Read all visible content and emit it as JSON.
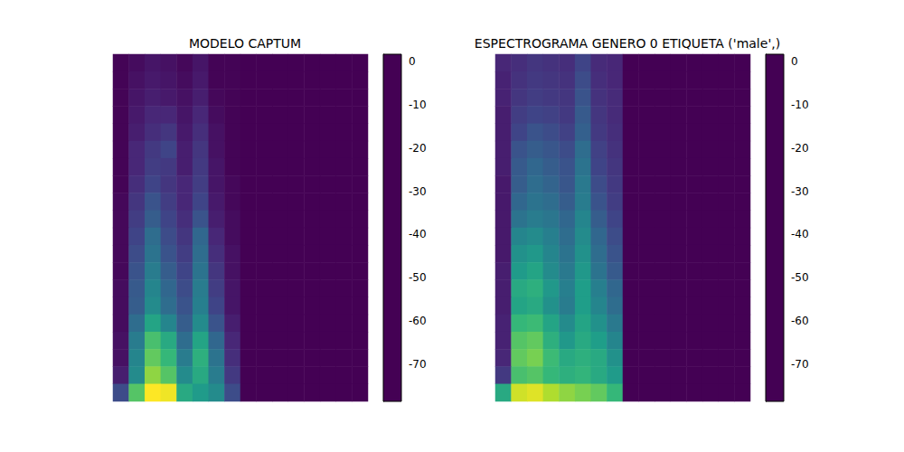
{
  "chart_data": [
    {
      "type": "heatmap",
      "title": "MODELO CAPTUM",
      "tick_labels": false,
      "colorbar": {
        "range": [
          -78.6,
          1.7
        ],
        "ticks": [
          -70,
          -60,
          -50,
          -40,
          -30,
          -20,
          -10,
          0
        ]
      },
      "cells": [
        [
          -78,
          -76,
          -74,
          -75,
          -77,
          -74,
          -78,
          -78,
          -78.6,
          -78.6,
          -78.6,
          -78.6,
          -78.6,
          -78.6,
          -78.6,
          -78.6
        ],
        [
          -78,
          -75,
          -73,
          -74,
          -76,
          -73,
          -78,
          -78,
          -78.6,
          -78.6,
          -78.6,
          -78.6,
          -78.6,
          -78.6,
          -78.6,
          -78.6
        ],
        [
          -78,
          -74,
          -72,
          -73,
          -75,
          -72,
          -77,
          -78,
          -78.6,
          -78.6,
          -78.6,
          -78.6,
          -78.6,
          -78.6,
          -78.6,
          -78.6
        ],
        [
          -78,
          -73,
          -70,
          -70,
          -74,
          -70,
          -76,
          -78,
          -78.6,
          -78.6,
          -78.6,
          -78.6,
          -78.6,
          -78.6,
          -78.6,
          -78.6
        ],
        [
          -78,
          -72,
          -68,
          -66,
          -73,
          -68,
          -75,
          -78,
          -78.6,
          -78.6,
          -78.6,
          -78.6,
          -78.6,
          -78.6,
          -78.6,
          -78.6
        ],
        [
          -78,
          -70,
          -65,
          -62,
          -72,
          -66,
          -75,
          -78,
          -78.6,
          -78.6,
          -78.6,
          -78.6,
          -78.6,
          -78.6,
          -78.6,
          -78.6
        ],
        [
          -78,
          -70,
          -64,
          -65,
          -72,
          -65,
          -74,
          -78,
          -78.6,
          -78.6,
          -78.6,
          -78.6,
          -78.6,
          -78.6,
          -78.6,
          -78.6
        ],
        [
          -78,
          -68,
          -62,
          -66,
          -70,
          -64,
          -74,
          -77,
          -78.6,
          -78.6,
          -78.6,
          -78.6,
          -78.6,
          -78.6,
          -78.6,
          -78.6
        ],
        [
          -77,
          -66,
          -58,
          -64,
          -70,
          -62,
          -73,
          -77,
          -78.6,
          -78.6,
          -78.6,
          -78.6,
          -78.6,
          -78.6,
          -78.6,
          -78.6
        ],
        [
          -77,
          -64,
          -55,
          -62,
          -68,
          -58,
          -72,
          -76,
          -78.6,
          -78.6,
          -78.6,
          -78.6,
          -78.6,
          -78.6,
          -78.6,
          -78.6
        ],
        [
          -77,
          -62,
          -50,
          -60,
          -66,
          -52,
          -70,
          -76,
          -78.6,
          -78.6,
          -78.6,
          -78.6,
          -78.6,
          -78.6,
          -78.6,
          -78.6
        ],
        [
          -77,
          -60,
          -48,
          -58,
          -64,
          -50,
          -68,
          -75,
          -78.6,
          -78.6,
          -78.6,
          -78.6,
          -78.6,
          -78.6,
          -78.6,
          -78.6
        ],
        [
          -77,
          -58,
          -45,
          -55,
          -62,
          -48,
          -66,
          -75,
          -78.6,
          -78.6,
          -78.6,
          -78.6,
          -78.6,
          -78.6,
          -78.6,
          -78.6
        ],
        [
          -76,
          -56,
          -42,
          -52,
          -60,
          -45,
          -64,
          -74,
          -78.6,
          -78.6,
          -78.6,
          -78.6,
          -78.6,
          -78.6,
          -78.6,
          -78.6
        ],
        [
          -76,
          -55,
          -40,
          -50,
          -58,
          -44,
          -62,
          -74,
          -78.6,
          -78.6,
          -78.6,
          -78.6,
          -78.6,
          -78.6,
          -78.6,
          -78.6
        ],
        [
          -76,
          -50,
          -32,
          -42,
          -55,
          -40,
          -58,
          -72,
          -78.6,
          -78.6,
          -78.6,
          -78.6,
          -78.6,
          -78.6,
          -78.6,
          -78.6
        ],
        [
          -75,
          -45,
          -22,
          -30,
          -50,
          -32,
          -52,
          -70,
          -78.6,
          -78.6,
          -78.6,
          -78.6,
          -78.6,
          -78.6,
          -78.6,
          -78.6
        ],
        [
          -75,
          -42,
          -18,
          -25,
          -45,
          -28,
          -48,
          -68,
          -78.6,
          -78.6,
          -78.6,
          -78.6,
          -78.6,
          -78.6,
          -78.6,
          -78.6
        ],
        [
          -72,
          -40,
          -12,
          -20,
          -40,
          -30,
          -45,
          -65,
          -78.6,
          -78.6,
          -78.6,
          -78.6,
          -78.6,
          -78.6,
          -78.6,
          -78.6
        ],
        [
          -60,
          -20,
          1.7,
          0,
          -30,
          -35,
          -40,
          -60,
          -78.6,
          -78.6,
          -78.6,
          -78.6,
          -78.6,
          -78.6,
          -78.6,
          -78.6
        ]
      ]
    },
    {
      "type": "heatmap",
      "title": "ESPECTROGRAMA GENERO 0 ETIQUETA ('male',)",
      "tick_labels": false,
      "colorbar": {
        "range": [
          -78.6,
          1.7
        ],
        "ticks": [
          -70,
          -60,
          -50,
          -40,
          -30,
          -20,
          -10,
          0
        ]
      },
      "cells": [
        [
          -70,
          -68,
          -66,
          -67,
          -68,
          -62,
          -69,
          -70,
          -78.6,
          -78.6,
          -78.6,
          -78.6,
          -78.6,
          -78.6,
          -78.6,
          -78.6
        ],
        [
          -71,
          -67,
          -65,
          -66,
          -67,
          -60,
          -68,
          -70,
          -78.6,
          -78.6,
          -78.6,
          -78.6,
          -78.6,
          -78.6,
          -78.6,
          -78.6
        ],
        [
          -71,
          -66,
          -64,
          -65,
          -66,
          -58,
          -67,
          -69,
          -78.6,
          -78.6,
          -78.6,
          -78.6,
          -78.6,
          -78.6,
          -78.6,
          -78.6
        ],
        [
          -72,
          -64,
          -62,
          -63,
          -65,
          -56,
          -66,
          -69,
          -78.6,
          -78.6,
          -78.6,
          -78.6,
          -78.6,
          -78.6,
          -78.6,
          -78.6
        ],
        [
          -72,
          -62,
          -58,
          -60,
          -63,
          -54,
          -65,
          -68,
          -78.6,
          -78.6,
          -78.6,
          -78.6,
          -78.6,
          -78.6,
          -78.6,
          -78.6
        ],
        [
          -72,
          -58,
          -55,
          -57,
          -60,
          -50,
          -63,
          -67,
          -78.6,
          -78.6,
          -78.6,
          -78.6,
          -78.6,
          -78.6,
          -78.6,
          -78.6
        ],
        [
          -72,
          -56,
          -52,
          -55,
          -58,
          -48,
          -62,
          -66,
          -78.6,
          -78.6,
          -78.6,
          -78.6,
          -78.6,
          -78.6,
          -78.6,
          -78.6
        ],
        [
          -73,
          -55,
          -50,
          -53,
          -57,
          -46,
          -60,
          -65,
          -78.6,
          -78.6,
          -78.6,
          -78.6,
          -78.6,
          -78.6,
          -78.6,
          -78.6
        ],
        [
          -73,
          -52,
          -48,
          -50,
          -55,
          -45,
          -58,
          -64,
          -78.6,
          -78.6,
          -78.6,
          -78.6,
          -78.6,
          -78.6,
          -78.6,
          -78.6
        ],
        [
          -73,
          -48,
          -45,
          -47,
          -52,
          -42,
          -55,
          -62,
          -78.6,
          -78.6,
          -78.6,
          -78.6,
          -78.6,
          -78.6,
          -78.6,
          -78.6
        ],
        [
          -73,
          -42,
          -40,
          -44,
          -50,
          -40,
          -52,
          -60,
          -78.6,
          -78.6,
          -78.6,
          -78.6,
          -78.6,
          -78.6,
          -78.6,
          -78.6
        ],
        [
          -73,
          -38,
          -36,
          -42,
          -48,
          -38,
          -50,
          -58,
          -78.6,
          -78.6,
          -78.6,
          -78.6,
          -78.6,
          -78.6,
          -78.6,
          -78.6
        ],
        [
          -72,
          -35,
          -32,
          -40,
          -46,
          -36,
          -48,
          -56,
          -78.6,
          -78.6,
          -78.6,
          -78.6,
          -78.6,
          -78.6,
          -78.6,
          -78.6
        ],
        [
          -72,
          -30,
          -28,
          -36,
          -44,
          -34,
          -44,
          -52,
          -78.6,
          -78.6,
          -78.6,
          -78.6,
          -78.6,
          -78.6,
          -78.6,
          -78.6
        ],
        [
          -72,
          -32,
          -30,
          -38,
          -45,
          -34,
          -42,
          -50,
          -78.6,
          -78.6,
          -78.6,
          -78.6,
          -78.6,
          -78.6,
          -78.6,
          -78.6
        ],
        [
          -71,
          -25,
          -24,
          -32,
          -40,
          -32,
          -38,
          -46,
          -78.6,
          -78.6,
          -78.6,
          -78.6,
          -78.6,
          -78.6,
          -78.6,
          -78.6
        ],
        [
          -71,
          -20,
          -18,
          -28,
          -36,
          -30,
          -34,
          -42,
          -78.6,
          -78.6,
          -78.6,
          -78.6,
          -78.6,
          -78.6,
          -78.6,
          -78.6
        ],
        [
          -70,
          -18,
          -15,
          -24,
          -30,
          -28,
          -30,
          -38,
          -78.6,
          -78.6,
          -78.6,
          -78.6,
          -78.6,
          -78.6,
          -78.6,
          -78.6
        ],
        [
          -65,
          -22,
          -20,
          -25,
          -28,
          -26,
          -30,
          -35,
          -78.6,
          -78.6,
          -78.6,
          -78.6,
          -78.6,
          -78.6,
          -78.6,
          -78.6
        ],
        [
          -30,
          -4,
          -2,
          -8,
          -12,
          -15,
          -18,
          -25,
          -78.6,
          -78.6,
          -78.6,
          -78.6,
          -78.6,
          -78.6,
          -78.6,
          -78.6
        ]
      ]
    }
  ]
}
